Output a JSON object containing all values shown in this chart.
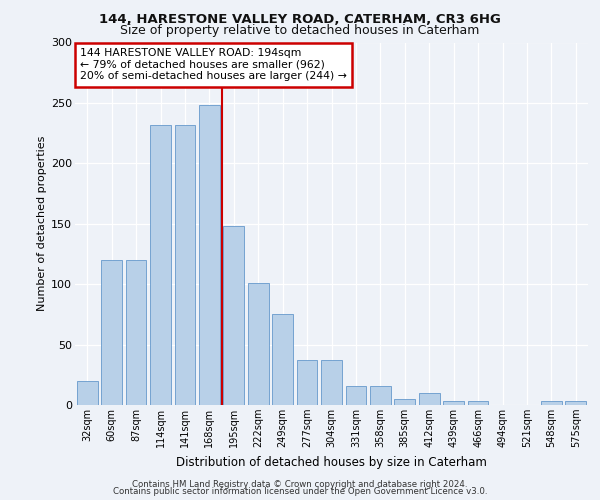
{
  "title1": "144, HARESTONE VALLEY ROAD, CATERHAM, CR3 6HG",
  "title2": "Size of property relative to detached houses in Caterham",
  "xlabel": "Distribution of detached houses by size in Caterham",
  "ylabel": "Number of detached properties",
  "categories": [
    "32sqm",
    "60sqm",
    "87sqm",
    "114sqm",
    "141sqm",
    "168sqm",
    "195sqm",
    "222sqm",
    "249sqm",
    "277sqm",
    "304sqm",
    "331sqm",
    "358sqm",
    "385sqm",
    "412sqm",
    "439sqm",
    "466sqm",
    "494sqm",
    "521sqm",
    "548sqm",
    "575sqm"
  ],
  "values": [
    20,
    120,
    120,
    232,
    232,
    248,
    148,
    101,
    75,
    37,
    37,
    16,
    16,
    5,
    10,
    3,
    3,
    0,
    0,
    3,
    3
  ],
  "bar_color": "#b8d0e8",
  "bar_edge_color": "#6699cc",
  "vline_color": "#cc0000",
  "vline_x_index": 6,
  "annotation_line1": "144 HARESTONE VALLEY ROAD: 194sqm",
  "annotation_line2": "← 79% of detached houses are smaller (962)",
  "annotation_line3": "20% of semi-detached houses are larger (244) →",
  "annotation_box_color": "#cc0000",
  "annotation_box_fill": "#ffffff",
  "yticks": [
    0,
    50,
    100,
    150,
    200,
    250,
    300
  ],
  "ylim": [
    0,
    300
  ],
  "footnote1": "Contains HM Land Registry data © Crown copyright and database right 2024.",
  "footnote2": "Contains public sector information licensed under the Open Government Licence v3.0.",
  "background_color": "#eef2f8",
  "plot_bg_color": "#eef2f8",
  "fig_width": 6.0,
  "fig_height": 5.0,
  "dpi": 100
}
